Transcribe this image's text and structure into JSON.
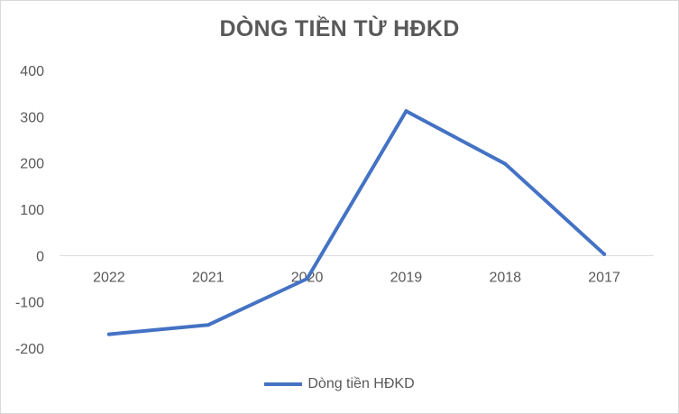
{
  "chart_data": {
    "type": "line",
    "title": "DÒNG TIỀN TỪ HĐKD",
    "categories": [
      "2022",
      "2021",
      "2020",
      "2019",
      "2018",
      "2017"
    ],
    "series": [
      {
        "name": "Dòng tiền HĐKD",
        "values": [
          -170,
          -150,
          -50,
          312,
          198,
          3
        ],
        "color": "#4472c4"
      }
    ],
    "ylim": [
      -200,
      400
    ],
    "yticks": [
      400,
      300,
      200,
      100,
      0,
      -100,
      -200
    ],
    "grid": false,
    "legend_position": "bottom"
  }
}
